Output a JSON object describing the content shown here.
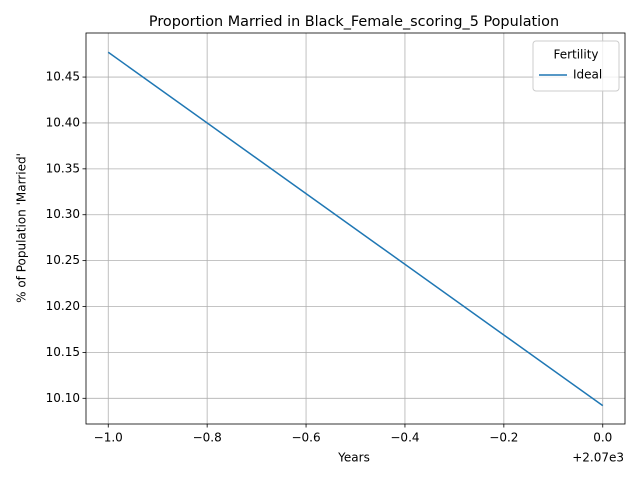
{
  "chart_data": {
    "type": "line",
    "title": "Proportion Married in Black_Female_scoring_5 Population",
    "xlabel": "Years",
    "ylabel": "% of Population 'Married'",
    "x": [
      2069,
      2070
    ],
    "x_offset_label": "+2.07e3",
    "series": [
      {
        "name": "Ideal",
        "color": "#1f77b4",
        "values": [
          10.477,
          10.092
        ]
      }
    ],
    "xlim": [
      2068.955,
      2070.045
    ],
    "xticks": [
      {
        "value": 2069,
        "label": "−1.0"
      },
      {
        "value": 2069.2,
        "label": "−0.8"
      },
      {
        "value": 2069.4,
        "label": "−0.6"
      },
      {
        "value": 2069.6,
        "label": "−0.4"
      },
      {
        "value": 2069.8,
        "label": "−0.2"
      },
      {
        "value": 2070,
        "label": "0.0"
      }
    ],
    "ylim": [
      10.072,
      10.498
    ],
    "yticks": [
      {
        "value": 10.1,
        "label": "10.10"
      },
      10.15,
      {
        "value": 10.2,
        "label": "10.20"
      },
      10.25,
      {
        "value": 10.3,
        "label": "10.30"
      },
      10.35,
      {
        "value": 10.4,
        "label": "10.40"
      },
      10.45
    ],
    "grid": true,
    "legend_title": "Fertility",
    "legend": "upper right"
  }
}
